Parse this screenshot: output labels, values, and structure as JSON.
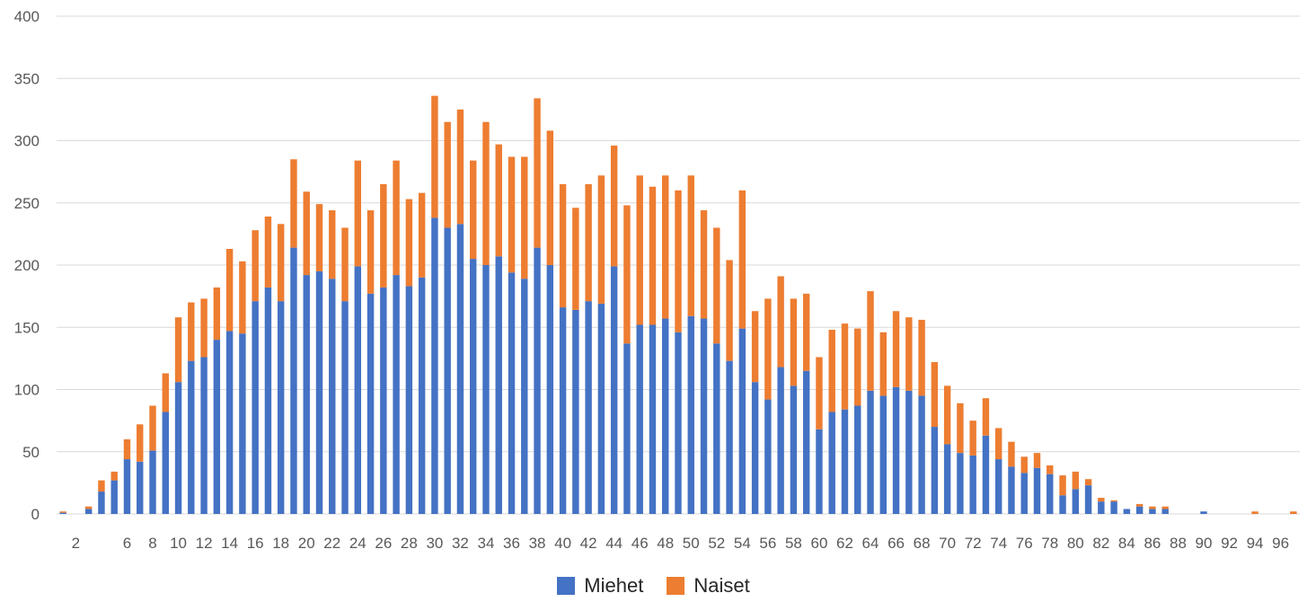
{
  "chart_data": {
    "type": "bar",
    "stacked": true,
    "categories": [
      "1",
      "2",
      "3",
      "4",
      "5",
      "6",
      "7",
      "8",
      "9",
      "10",
      "11",
      "12",
      "13",
      "14",
      "15",
      "16",
      "17",
      "18",
      "19",
      "20",
      "21",
      "22",
      "23",
      "24",
      "25",
      "26",
      "27",
      "28",
      "29",
      "30",
      "31",
      "32",
      "33",
      "34",
      "35",
      "36",
      "37",
      "38",
      "39",
      "40",
      "41",
      "42",
      "43",
      "44",
      "45",
      "46",
      "47",
      "48",
      "49",
      "50",
      "51",
      "52",
      "53",
      "54",
      "55",
      "56",
      "57",
      "58",
      "59",
      "60",
      "61",
      "62",
      "63",
      "64",
      "65",
      "66",
      "67",
      "68",
      "69",
      "70",
      "71",
      "72",
      "73",
      "74",
      "75",
      "76",
      "77",
      "78",
      "79",
      "80",
      "81",
      "82",
      "83",
      "84",
      "85",
      "86",
      "87",
      "88",
      "89",
      "90",
      "91",
      "92",
      "93",
      "94",
      "95",
      "96",
      "97"
    ],
    "x_tick_labels": [
      "2",
      "6",
      "8",
      "10",
      "12",
      "14",
      "16",
      "18",
      "20",
      "22",
      "24",
      "26",
      "28",
      "30",
      "32",
      "34",
      "36",
      "38",
      "40",
      "42",
      "44",
      "46",
      "48",
      "50",
      "52",
      "54",
      "56",
      "58",
      "60",
      "62",
      "64",
      "66",
      "68",
      "70",
      "72",
      "74",
      "76",
      "78",
      "80",
      "82",
      "84",
      "86",
      "88",
      "90",
      "92",
      "94",
      "96"
    ],
    "y_tick_labels": [
      "0",
      "50",
      "100",
      "150",
      "200",
      "250",
      "300",
      "350",
      "400"
    ],
    "ylim": [
      0,
      400
    ],
    "grid": true,
    "legend_position": "bottom",
    "series": [
      {
        "name": "Miehet",
        "color": "#4472c4",
        "values": [
          1,
          0,
          4,
          18,
          27,
          44,
          42,
          51,
          82,
          106,
          123,
          126,
          140,
          147,
          145,
          171,
          182,
          171,
          214,
          192,
          195,
          189,
          171,
          199,
          177,
          182,
          192,
          183,
          190,
          238,
          230,
          233,
          205,
          200,
          207,
          194,
          189,
          214,
          200,
          166,
          164,
          171,
          169,
          199,
          137,
          152,
          152,
          157,
          146,
          159,
          157,
          137,
          123,
          149,
          106,
          92,
          118,
          103,
          115,
          68,
          82,
          84,
          87,
          99,
          95,
          102,
          99,
          95,
          70,
          56,
          49,
          47,
          63,
          44,
          38,
          33,
          37,
          32,
          15,
          20,
          23,
          10,
          10,
          4,
          6,
          4,
          4,
          0,
          0,
          2,
          0,
          0,
          0,
          0,
          0,
          0,
          0
        ]
      },
      {
        "name": "Naiset",
        "color": "#ed7d31",
        "values": [
          1,
          0,
          2,
          9,
          7,
          16,
          30,
          36,
          31,
          52,
          47,
          47,
          42,
          66,
          58,
          57,
          57,
          62,
          71,
          67,
          54,
          55,
          59,
          85,
          67,
          83,
          92,
          70,
          68,
          98,
          85,
          92,
          79,
          115,
          90,
          93,
          98,
          120,
          108,
          99,
          82,
          94,
          103,
          97,
          111,
          120,
          111,
          115,
          114,
          113,
          87,
          93,
          81,
          111,
          57,
          81,
          73,
          70,
          62,
          58,
          66,
          69,
          62,
          80,
          51,
          61,
          59,
          61,
          52,
          47,
          40,
          28,
          30,
          25,
          20,
          13,
          12,
          7,
          16,
          14,
          5,
          3,
          1,
          0,
          2,
          2,
          2,
          0,
          0,
          0,
          0,
          0,
          0,
          2,
          0,
          0,
          2
        ]
      }
    ]
  }
}
